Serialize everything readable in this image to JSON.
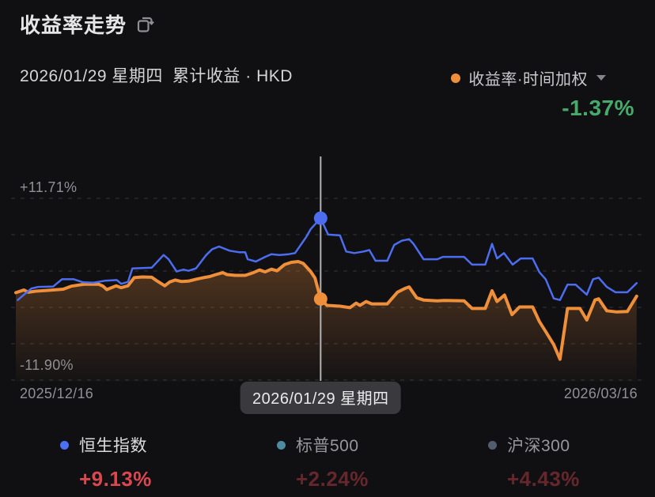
{
  "header": {
    "title": "收益率走势",
    "subtitle_date": "2026/01/29 星期四",
    "subtitle_metric": "累计收益 · HKD",
    "metric_picker": {
      "label": "收益率·时间加权",
      "dot_color": "#ef8f3a"
    },
    "main_value": "-1.37%",
    "main_value_color": "#47aa6b"
  },
  "chart_data": {
    "type": "line",
    "title": "收益率走势",
    "y_axis": {
      "max": 11.71,
      "min": -11.9,
      "max_label": "+11.71%",
      "min_label": "-11.90%"
    },
    "x_axis": {
      "start_label": "2025/12/16",
      "end_label": "2026/03/16"
    },
    "gridlines": 6,
    "grid_color": "#2c2c30",
    "crosshair": {
      "x_pct": 48.9,
      "date_label": "2026/01/29 星期四",
      "line_color": "#b3b3b6"
    },
    "series": [
      {
        "name": "收益率·时间加权",
        "color": "#ef8f3a",
        "width": 4,
        "area": true,
        "marker_value": -1.37,
        "points": [
          [
            0,
            -0.55
          ],
          [
            1.3,
            -0.2
          ],
          [
            2,
            -0.5
          ],
          [
            3.2,
            -0.35
          ],
          [
            5.1,
            -0.25
          ],
          [
            7.6,
            -0.1
          ],
          [
            8.9,
            0.3
          ],
          [
            11,
            0.55
          ],
          [
            13.3,
            0.55
          ],
          [
            14,
            0.3
          ],
          [
            14.6,
            -0.15
          ],
          [
            16.1,
            0.35
          ],
          [
            16.9,
            0.1
          ],
          [
            18,
            0.35
          ],
          [
            19,
            1.4
          ],
          [
            20.3,
            1.5
          ],
          [
            21.8,
            1.45
          ],
          [
            22.6,
            1.0
          ],
          [
            23.9,
            0.35
          ],
          [
            24.7,
            0.85
          ],
          [
            25.6,
            1.1
          ],
          [
            26.6,
            0.9
          ],
          [
            27.7,
            0.95
          ],
          [
            28.9,
            1.2
          ],
          [
            30.1,
            1.4
          ],
          [
            31.1,
            1.55
          ],
          [
            32.1,
            1.8
          ],
          [
            33.2,
            2.05
          ],
          [
            33.9,
            1.8
          ],
          [
            35.2,
            1.7
          ],
          [
            36.8,
            1.7
          ],
          [
            38.1,
            2.05
          ],
          [
            39.1,
            2.4
          ],
          [
            40,
            2.15
          ],
          [
            41,
            2.5
          ],
          [
            41.9,
            2.3
          ],
          [
            43.1,
            3.1
          ],
          [
            44.2,
            3.4
          ],
          [
            45.3,
            3.5
          ],
          [
            46.1,
            3.25
          ],
          [
            47.3,
            2.2
          ],
          [
            48,
            1.35
          ],
          [
            48.9,
            -1.37
          ],
          [
            49.9,
            -2.2
          ],
          [
            52,
            -2.3
          ],
          [
            53.6,
            -2.5
          ],
          [
            54.6,
            -1.9
          ],
          [
            55.2,
            -2.2
          ],
          [
            56.2,
            -1.7
          ],
          [
            57.1,
            -2.0
          ],
          [
            59.6,
            -2.0
          ],
          [
            61.2,
            -0.5
          ],
          [
            62.4,
            0.0
          ],
          [
            63.1,
            0.2
          ],
          [
            64.3,
            -1.2
          ],
          [
            65.4,
            -1.5
          ],
          [
            67.6,
            -1.6
          ],
          [
            68.8,
            -1.55
          ],
          [
            71.9,
            -1.6
          ],
          [
            73.2,
            -2.6
          ],
          [
            75.3,
            -2.6
          ],
          [
            76.4,
            -0.3
          ],
          [
            77.2,
            -1.7
          ],
          [
            78.4,
            -0.85
          ],
          [
            79.6,
            -3.4
          ],
          [
            80.8,
            -2.4
          ],
          [
            82.9,
            -2.4
          ],
          [
            84,
            -4.3
          ],
          [
            85,
            -5.6
          ],
          [
            86.3,
            -7.3
          ],
          [
            87.3,
            -9.2
          ],
          [
            88.5,
            -2.6
          ],
          [
            90.5,
            -2.6
          ],
          [
            91.6,
            -4.1
          ],
          [
            92.9,
            -1.5
          ],
          [
            93.5,
            -1.35
          ],
          [
            94.8,
            -2.9
          ],
          [
            96.4,
            -3.05
          ],
          [
            98.1,
            -3.0
          ],
          [
            99.6,
            -1.0
          ]
        ]
      },
      {
        "name": "恒生指数",
        "color": "#4d6df0",
        "width": 2.5,
        "area": false,
        "marker_value": 9.13,
        "points": [
          [
            0.3,
            -1.5
          ],
          [
            2.5,
            0.0
          ],
          [
            3.6,
            0.2
          ],
          [
            6,
            0.25
          ],
          [
            7.4,
            1.2
          ],
          [
            9.3,
            1.2
          ],
          [
            10.8,
            0.8
          ],
          [
            12.4,
            0.75
          ],
          [
            14.3,
            1.0
          ],
          [
            16.2,
            1.1
          ],
          [
            16.9,
            0.6
          ],
          [
            18,
            0.85
          ],
          [
            18.7,
            2.6
          ],
          [
            21.8,
            2.7
          ],
          [
            23.7,
            4.35
          ],
          [
            24.5,
            3.8
          ],
          [
            25.8,
            2.2
          ],
          [
            26.9,
            2.45
          ],
          [
            27.7,
            2.3
          ],
          [
            28.9,
            2.6
          ],
          [
            30.5,
            4.3
          ],
          [
            31.5,
            5.1
          ],
          [
            32.6,
            5.45
          ],
          [
            34.3,
            4.9
          ],
          [
            35.9,
            4.7
          ],
          [
            36.8,
            4.7
          ],
          [
            37.2,
            3.8
          ],
          [
            38.5,
            3.5
          ],
          [
            40,
            4.1
          ],
          [
            41,
            4.45
          ],
          [
            42.3,
            4.35
          ],
          [
            43.8,
            4.45
          ],
          [
            44.8,
            4.6
          ],
          [
            46.6,
            6.7
          ],
          [
            47.3,
            7.7
          ],
          [
            48.9,
            9.13
          ],
          [
            50.1,
            7.0
          ],
          [
            52,
            6.9
          ],
          [
            53,
            4.8
          ],
          [
            54.3,
            4.6
          ],
          [
            55.8,
            4.8
          ],
          [
            56.7,
            5.0
          ],
          [
            57.7,
            3.6
          ],
          [
            59.6,
            3.6
          ],
          [
            60.7,
            5.65
          ],
          [
            61.9,
            6.2
          ],
          [
            63.1,
            6.4
          ],
          [
            63.8,
            5.8
          ],
          [
            65.4,
            3.8
          ],
          [
            67.6,
            3.8
          ],
          [
            68.5,
            4.1
          ],
          [
            71.9,
            4.1
          ],
          [
            73.2,
            3.1
          ],
          [
            75.3,
            3.1
          ],
          [
            76.4,
            5.8
          ],
          [
            77.2,
            3.9
          ],
          [
            78.3,
            4.6
          ],
          [
            79.7,
            3.1
          ],
          [
            81,
            3.9
          ],
          [
            82.9,
            3.9
          ],
          [
            84,
            2.1
          ],
          [
            85,
            1.2
          ],
          [
            86.3,
            -1.3
          ],
          [
            87.3,
            -1.5
          ],
          [
            88.5,
            0.5
          ],
          [
            89.8,
            0.5
          ],
          [
            91.6,
            -0.8
          ],
          [
            92.6,
            1.2
          ],
          [
            93.5,
            1.4
          ],
          [
            94.8,
            0.2
          ],
          [
            96.2,
            -0.5
          ],
          [
            98.1,
            -0.5
          ],
          [
            99.6,
            0.7
          ]
        ]
      }
    ]
  },
  "legend": [
    {
      "label": "恒生指数",
      "value": "+9.13%",
      "dot_color": "#4d71f5",
      "active": true
    },
    {
      "label": "标普500",
      "value": "+2.24%",
      "dot_color": "#4f8ba0",
      "active": false
    },
    {
      "label": "沪深300",
      "value": "+4.43%",
      "dot_color": "#525d6d",
      "active": false
    }
  ]
}
